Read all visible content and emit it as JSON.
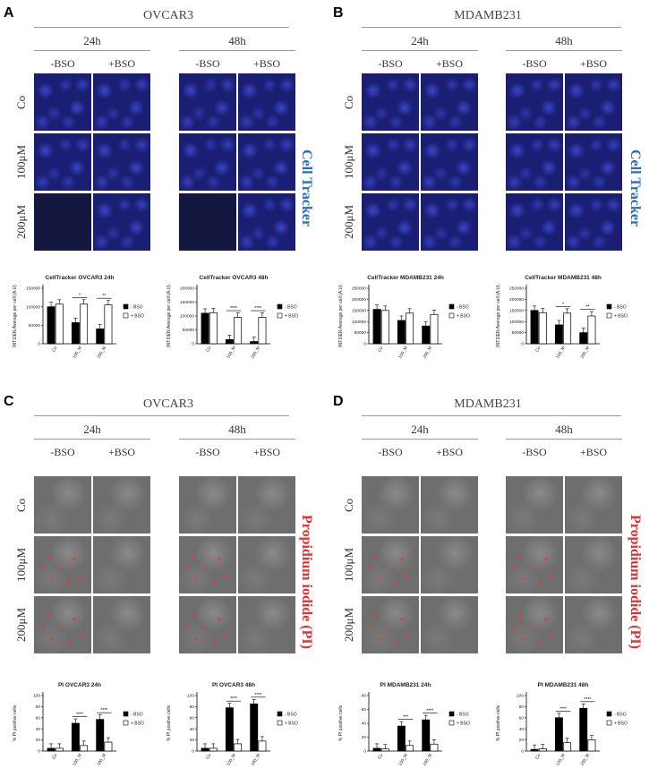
{
  "panels": {
    "A": {
      "label": "A",
      "cell": "OVCAR3"
    },
    "B": {
      "label": "B",
      "cell": "MDAMB231"
    },
    "C": {
      "label": "C",
      "cell": "OVCAR3"
    },
    "D": {
      "label": "D",
      "cell": "MDAMB231"
    }
  },
  "times": [
    "24h",
    "48h"
  ],
  "conditions": [
    "-BSO",
    "+BSO"
  ],
  "rows": [
    "Co",
    "100μM",
    "200μM"
  ],
  "stains": {
    "cell_tracker": "Cell Tracker",
    "pi": "Propidium iodide (PI)"
  },
  "colors": {
    "cell_tracker": "#2a6ebb",
    "pi": "#e03030",
    "minus_bso": "#000000",
    "plus_bso": "#ffffff"
  },
  "legend": {
    "minus": "- BSO",
    "plus": "+ BSO"
  },
  "chart_data": [
    {
      "type": "bar",
      "title": "CellTracker OVCAR3 24h",
      "ylabel": "INT.DEN Average per cell (A.U)",
      "categories": [
        "Co",
        "100_M",
        "200_M"
      ],
      "ylim": [
        0,
        150000
      ],
      "yticks": [
        "0",
        "50000",
        "100000",
        "150000"
      ],
      "series": [
        {
          "name": "- BSO",
          "values": [
            100000,
            57000,
            40000
          ]
        },
        {
          "name": "+ BSO",
          "values": [
            107000,
            107000,
            105000
          ]
        }
      ],
      "sig": [
        {
          "cat": 1,
          "label": "*"
        },
        {
          "cat": 2,
          "label": "**"
        }
      ]
    },
    {
      "type": "bar",
      "title": "CellTracker OVCAR3 48h",
      "ylabel": "INT.DEN Average per cell (A.U)",
      "categories": [
        "Co",
        "100_M",
        "200_M"
      ],
      "ylim": [
        0,
        200000
      ],
      "yticks": [
        "0",
        "50000",
        "100000",
        "150000",
        "200000"
      ],
      "series": [
        {
          "name": "- BSO",
          "values": [
            110000,
            15000,
            8000
          ]
        },
        {
          "name": "+ BSO",
          "values": [
            112000,
            95000,
            95000
          ]
        }
      ],
      "sig": [
        {
          "cat": 1,
          "label": "****"
        },
        {
          "cat": 2,
          "label": "****"
        }
      ]
    },
    {
      "type": "bar",
      "title": "CellTracker MDAMB231 24h",
      "ylabel": "INT.DEN Average per cell (A.U)",
      "categories": [
        "Co",
        "100_M",
        "200_M"
      ],
      "ylim": [
        0,
        250000
      ],
      "yticks": [
        "0",
        "50000",
        "100000",
        "150000",
        "200000",
        "250000"
      ],
      "series": [
        {
          "name": "- BSO",
          "values": [
            155000,
            105000,
            80000
          ]
        },
        {
          "name": "+ BSO",
          "values": [
            150000,
            138000,
            132000
          ]
        }
      ],
      "sig": []
    },
    {
      "type": "bar",
      "title": "CellTracker MDAMB231 48h",
      "ylabel": "INT.DEN Average per cell (A.U)",
      "categories": [
        "Co",
        "100_M",
        "200_M"
      ],
      "ylim": [
        0,
        250000
      ],
      "yticks": [
        "0",
        "50000",
        "100000",
        "150000",
        "200000",
        "250000"
      ],
      "series": [
        {
          "name": "- BSO",
          "values": [
            150000,
            85000,
            50000
          ]
        },
        {
          "name": "+ BSO",
          "values": [
            140000,
            138000,
            125000
          ]
        }
      ],
      "sig": [
        {
          "cat": 1,
          "label": "*"
        },
        {
          "cat": 2,
          "label": "**"
        }
      ]
    },
    {
      "type": "bar",
      "title": "PI OVCAR3 24h",
      "ylabel": "% PI positive cells",
      "categories": [
        "Co",
        "100_M",
        "200_M"
      ],
      "ylim": [
        0,
        100
      ],
      "yticks": [
        "0",
        "20",
        "40",
        "60",
        "80",
        "100"
      ],
      "series": [
        {
          "name": "- BSO",
          "values": [
            5,
            50,
            57
          ]
        },
        {
          "name": "+ BSO",
          "values": [
            5,
            10,
            16
          ]
        }
      ],
      "sig": [
        {
          "cat": 1,
          "label": "****"
        },
        {
          "cat": 2,
          "label": "****"
        }
      ]
    },
    {
      "type": "bar",
      "title": "PI OVCAR3 48h",
      "ylabel": "% PI positive cells",
      "categories": [
        "Co",
        "100_M",
        "200_M"
      ],
      "ylim": [
        0,
        100
      ],
      "yticks": [
        "0",
        "20",
        "40",
        "60",
        "80",
        "100"
      ],
      "series": [
        {
          "name": "- BSO",
          "values": [
            5,
            78,
            85
          ]
        },
        {
          "name": "+ BSO",
          "values": [
            5,
            13,
            18
          ]
        }
      ],
      "sig": [
        {
          "cat": 1,
          "label": "****"
        },
        {
          "cat": 2,
          "label": "****"
        }
      ]
    },
    {
      "type": "bar",
      "title": "PI MDAMB231 24h",
      "ylabel": "% PI positive cells",
      "categories": [
        "Co",
        "100_M",
        "200_M"
      ],
      "ylim": [
        0,
        80
      ],
      "yticks": [
        "0",
        "20",
        "40",
        "60",
        "80"
      ],
      "series": [
        {
          "name": "- BSO",
          "values": [
            4,
            36,
            45
          ]
        },
        {
          "name": "+ BSO",
          "values": [
            3,
            8,
            10
          ]
        }
      ],
      "sig": [
        {
          "cat": 1,
          "label": "***"
        },
        {
          "cat": 2,
          "label": "****"
        }
      ]
    },
    {
      "type": "bar",
      "title": "PI MDAMB231 48h",
      "ylabel": "% PI positive cells",
      "categories": [
        "Co",
        "100_M",
        "200_M"
      ],
      "ylim": [
        0,
        100
      ],
      "yticks": [
        "0",
        "20",
        "40",
        "60",
        "80",
        "100"
      ],
      "series": [
        {
          "name": "- BSO",
          "values": [
            3,
            60,
            77
          ]
        },
        {
          "name": "+ BSO",
          "values": [
            4,
            15,
            20
          ]
        }
      ],
      "sig": [
        {
          "cat": 1,
          "label": "****"
        },
        {
          "cat": 2,
          "label": "****"
        }
      ]
    }
  ]
}
